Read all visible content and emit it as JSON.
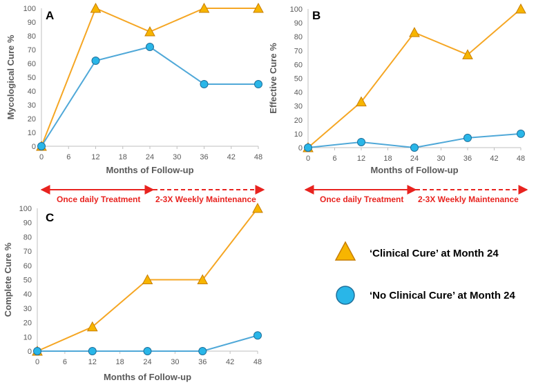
{
  "colors": {
    "orange_line": "#f5a623",
    "orange_fill": "#f7b500",
    "orange_stroke": "#c77d00",
    "blue_line": "#4fa8d8",
    "blue_fill": "#29b6e8",
    "blue_stroke": "#1f6f9a",
    "axis": "#bfbfbf",
    "phase": "#e8231f"
  },
  "legend": {
    "clinical_cure": "‘Clinical Cure’ at Month 24",
    "no_clinical_cure": "‘No Clinical Cure’ at Month 24"
  },
  "phases": {
    "treatment": "Once daily Treatment",
    "maintenance": "2-3X Weekly Maintenance"
  },
  "chart_data": [
    {
      "panel": "A",
      "type": "line",
      "xlabel": "Months of Follow-up",
      "ylabel": "Mycological Cure %",
      "x_ticks": [
        "0",
        "6",
        "12",
        "18",
        "24",
        "30",
        "36",
        "42",
        "48"
      ],
      "y_ticks": [
        "0",
        "10",
        "20",
        "30",
        "40",
        "50",
        "60",
        "70",
        "80",
        "90",
        "100"
      ],
      "xlim": [
        0,
        48
      ],
      "ylim": [
        0,
        100
      ],
      "series": [
        {
          "name": "‘Clinical Cure’ at Month 24",
          "marker": "triangle",
          "x": [
            0,
            12,
            24,
            36,
            48
          ],
          "values": [
            0,
            100,
            83,
            100,
            100
          ]
        },
        {
          "name": "‘No Clinical Cure’ at Month 24",
          "marker": "circle",
          "x": [
            0,
            12,
            24,
            36,
            48
          ],
          "values": [
            0,
            62,
            72,
            45,
            45
          ]
        }
      ]
    },
    {
      "panel": "B",
      "type": "line",
      "xlabel": "Months of Follow-up",
      "ylabel": "Effective Cure %",
      "x_ticks": [
        "0",
        "6",
        "12",
        "18",
        "24",
        "30",
        "36",
        "42",
        "48"
      ],
      "y_ticks": [
        "0",
        "10",
        "20",
        "30",
        "40",
        "50",
        "60",
        "70",
        "80",
        "90",
        "100"
      ],
      "xlim": [
        0,
        48
      ],
      "ylim": [
        0,
        100
      ],
      "series": [
        {
          "name": "‘Clinical Cure’ at Month 24",
          "marker": "triangle",
          "x": [
            0,
            12,
            24,
            36,
            48
          ],
          "values": [
            0,
            33,
            83,
            67,
            100
          ]
        },
        {
          "name": "‘No Clinical Cure’ at Month 24",
          "marker": "circle",
          "x": [
            0,
            12,
            24,
            36,
            48
          ],
          "values": [
            0,
            4,
            0,
            7,
            10
          ]
        }
      ]
    },
    {
      "panel": "C",
      "type": "line",
      "xlabel": "Months of Follow-up",
      "ylabel": "Complete Cure %",
      "x_ticks": [
        "0",
        "6",
        "12",
        "18",
        "24",
        "30",
        "36",
        "42",
        "48"
      ],
      "y_ticks": [
        "0",
        "10",
        "20",
        "30",
        "40",
        "50",
        "60",
        "70",
        "80",
        "90",
        "100"
      ],
      "xlim": [
        0,
        48
      ],
      "ylim": [
        0,
        100
      ],
      "series": [
        {
          "name": "‘Clinical Cure’ at Month 24",
          "marker": "triangle",
          "x": [
            0,
            12,
            24,
            36,
            48
          ],
          "values": [
            0,
            17,
            50,
            50,
            100
          ]
        },
        {
          "name": "‘No Clinical Cure’ at Month 24",
          "marker": "circle",
          "x": [
            0,
            12,
            24,
            36,
            48
          ],
          "values": [
            0,
            0,
            0,
            0,
            11
          ]
        }
      ]
    }
  ]
}
